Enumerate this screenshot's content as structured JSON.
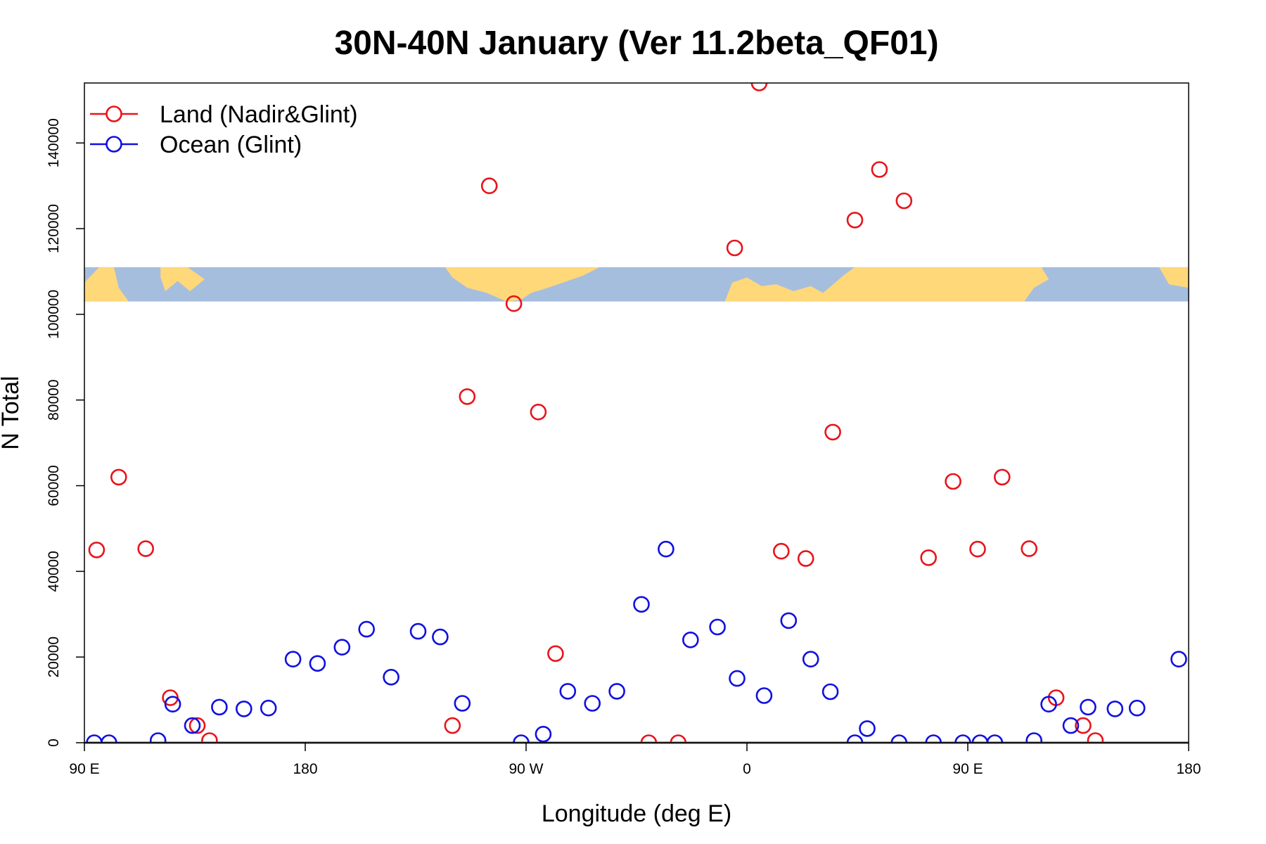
{
  "chart_data": {
    "type": "scatter",
    "title": "30N-40N January (Ver 11.2beta_QF01)",
    "xlabel": "Longitude (deg E)",
    "ylabel": "N Total",
    "xlim": [
      90,
      540
    ],
    "ylim": [
      0,
      154000
    ],
    "x_ticks": [
      {
        "value": 90,
        "label": "90 E"
      },
      {
        "value": 180,
        "label": "180"
      },
      {
        "value": 270,
        "label": "90 W"
      },
      {
        "value": 360,
        "label": "0"
      },
      {
        "value": 450,
        "label": "90 E"
      },
      {
        "value": 540,
        "label": "180"
      }
    ],
    "y_ticks": [
      {
        "value": 0,
        "label": "0"
      },
      {
        "value": 20000,
        "label": "20000"
      },
      {
        "value": 40000,
        "label": "40000"
      },
      {
        "value": 60000,
        "label": "60000"
      },
      {
        "value": 80000,
        "label": "80000"
      },
      {
        "value": 100000,
        "label": "100000"
      },
      {
        "value": 120000,
        "label": "120000"
      },
      {
        "value": 140000,
        "label": "140000"
      }
    ],
    "legend_position": "top-left",
    "map_strip": {
      "ylim": [
        103000,
        111000
      ],
      "land_color": "#FFD87A",
      "ocean_color": "#A6BEDE"
    },
    "series": [
      {
        "name": "Land (Nadir&Glint)",
        "color": "#E8141C",
        "points": [
          [
            95,
            45000
          ],
          [
            104,
            62000
          ],
          [
            115,
            45300
          ],
          [
            125,
            10500
          ],
          [
            136,
            4000
          ],
          [
            141,
            500
          ],
          [
            240,
            4000
          ],
          [
            246,
            80800
          ],
          [
            255,
            130000
          ],
          [
            265,
            102500
          ],
          [
            275,
            77200
          ],
          [
            282,
            20800
          ],
          [
            320,
            0
          ],
          [
            332,
            0
          ],
          [
            355,
            115500
          ],
          [
            365,
            154000
          ],
          [
            374,
            44700
          ],
          [
            384,
            43000
          ],
          [
            395,
            72500
          ],
          [
            404,
            122000
          ],
          [
            414,
            133800
          ],
          [
            424,
            126500
          ],
          [
            434,
            43200
          ],
          [
            444,
            61000
          ],
          [
            454,
            45200
          ],
          [
            464,
            62000
          ],
          [
            475,
            45300
          ],
          [
            486,
            10500
          ],
          [
            497,
            4000
          ],
          [
            502,
            500
          ]
        ]
      },
      {
        "name": "Ocean (Glint)",
        "color": "#1010E0",
        "points": [
          [
            94,
            0
          ],
          [
            100,
            0
          ],
          [
            120,
            500
          ],
          [
            126,
            9000
          ],
          [
            134,
            4000
          ],
          [
            145,
            8300
          ],
          [
            155,
            7900
          ],
          [
            165,
            8100
          ],
          [
            175,
            19500
          ],
          [
            185,
            18500
          ],
          [
            195,
            22300
          ],
          [
            205,
            26500
          ],
          [
            215,
            15300
          ],
          [
            226,
            26000
          ],
          [
            235,
            24700
          ],
          [
            244,
            9200
          ],
          [
            268,
            0
          ],
          [
            277,
            2000
          ],
          [
            287,
            12000
          ],
          [
            297,
            9200
          ],
          [
            307,
            12000
          ],
          [
            317,
            32300
          ],
          [
            327,
            45200
          ],
          [
            337,
            24000
          ],
          [
            348,
            27000
          ],
          [
            356,
            15000
          ],
          [
            367,
            11000
          ],
          [
            377,
            28500
          ],
          [
            386,
            19500
          ],
          [
            394,
            11900
          ],
          [
            404,
            0
          ],
          [
            409,
            3300
          ],
          [
            422,
            0
          ],
          [
            436,
            0
          ],
          [
            448,
            0
          ],
          [
            455,
            0
          ],
          [
            461,
            0
          ],
          [
            477,
            500
          ],
          [
            483,
            9000
          ],
          [
            492,
            4000
          ],
          [
            499,
            8300
          ],
          [
            510,
            7900
          ],
          [
            519,
            8100
          ],
          [
            536,
            19500
          ]
        ]
      }
    ]
  }
}
